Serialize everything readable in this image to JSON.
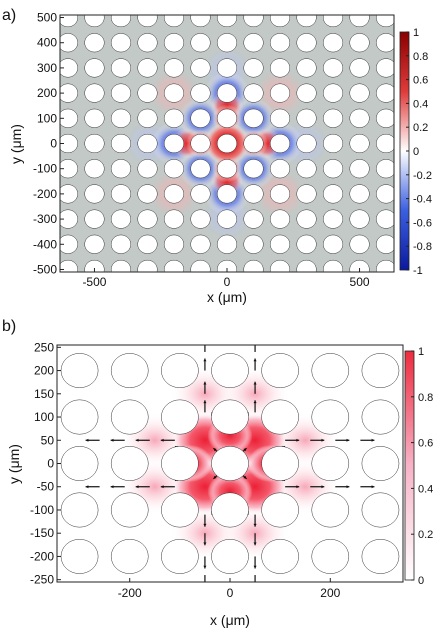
{
  "chart_data": [
    {
      "type": "heatmap",
      "panel_label": "a)",
      "xlabel": "x (μm)",
      "ylabel": "y (μm)",
      "xlim": [
        -630,
        630
      ],
      "ylim": [
        -510,
        510
      ],
      "xticks": [
        -500,
        0,
        500
      ],
      "yticks": [
        500,
        400,
        300,
        200,
        100,
        0,
        -100,
        -200,
        -300,
        -400,
        -500
      ],
      "xtick_labels": [
        "-500",
        "0",
        "500"
      ],
      "ytick_labels": [
        "500",
        "400",
        "300",
        "200",
        "100",
        "0",
        "-100",
        "-200",
        "-300",
        "-400",
        "-500"
      ],
      "colorbar": {
        "min": -1,
        "max": 1,
        "ticks": [
          1,
          0.8,
          0.6,
          0.4,
          0.2,
          0,
          -0.2,
          -0.4,
          -0.6,
          -0.8,
          -1
        ],
        "tick_labels": [
          "1",
          "0.8",
          "0.6",
          "0.4",
          "0.2",
          "0",
          "-0.2",
          "-0.4",
          "-0.6",
          "-0.8",
          "-1"
        ],
        "colormap": [
          "#0b1a9e",
          "#3b5fe0",
          "#ffffff",
          "#e03b3b",
          "#8b0000"
        ]
      },
      "lattice_pitch": 100,
      "hole_radius": 37,
      "background_color": "#c2c9c7",
      "field_peak": {
        "x": 0,
        "y": 0,
        "value": 1
      }
    },
    {
      "type": "heatmap",
      "panel_label": "b)",
      "xlabel": "x (μm)",
      "ylabel": "y (μm)",
      "xlim": [
        -345,
        345
      ],
      "ylim": [
        -255,
        255
      ],
      "xticks": [
        -200,
        0,
        200
      ],
      "yticks": [
        250,
        200,
        150,
        100,
        50,
        0,
        -50,
        -100,
        -150,
        -200,
        -250
      ],
      "xtick_labels": [
        "-200",
        "0",
        "200"
      ],
      "ytick_labels": [
        "250",
        "200",
        "150",
        "100",
        "50",
        "0",
        "-50",
        "-100",
        "-150",
        "-200",
        "-250"
      ],
      "colorbar": {
        "min": 0,
        "max": 1,
        "ticks": [
          1,
          0.8,
          0.6,
          0.4,
          0.2,
          0
        ],
        "tick_labels": [
          "1",
          "0.8",
          "0.6",
          "0.4",
          "0.2",
          "0"
        ],
        "colormap": [
          "#ffffff",
          "#f7b3c7",
          "#ee2a3e"
        ]
      },
      "lattice_pitch": 100,
      "hole_radius": 37,
      "field_peak": {
        "x": 0,
        "y": 0,
        "value": 1
      }
    }
  ]
}
